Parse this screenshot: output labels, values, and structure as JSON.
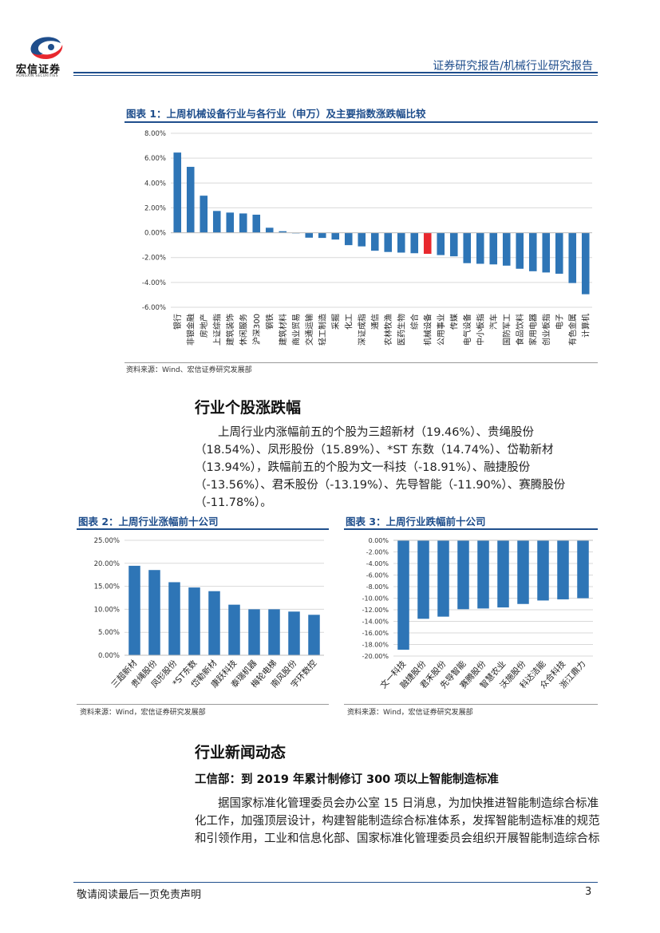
{
  "header": {
    "logo_name": "宏信证券",
    "logo_en": "HONGXIN SECURITIES",
    "title": "证券研究报告/机械行业研究报告"
  },
  "figure1": {
    "title": "图表 1：上周机械设备行业与各行业（申万）及主要指数涨跌幅比较",
    "source": "资料来源：Wind、宏信证券研究发展部"
  },
  "section1": {
    "heading": "行业个股涨跌幅",
    "paragraph": "上周行业内涨幅前五的个股为三超新材（19.46%）、贵绳股份（18.54%）、凤形股份（15.89%）、*ST 东数（14.74%）、岱勒新材（13.94%），跌幅前五的个股为文一科技（-18.91%）、融捷股份（-13.56%）、君禾股份（-13.19%）、先导智能（-11.90%）、赛腾股份（-11.78%）。"
  },
  "figure2": {
    "title": "图表 2：上周行业涨幅前十公司",
    "source": "资料来源：Wind，宏信证券研究发展部"
  },
  "figure3": {
    "title": "图表 3：上周行业跌幅前十公司",
    "source": "资料来源：Wind，宏信证券研究发展部"
  },
  "section2": {
    "heading": "行业新闻动态",
    "subheading": "工信部：到 2019 年累计制修订 300 项以上智能制造标准",
    "paragraph": "据国家标准化管理委员会办公室 15 日消息，为加快推进智能制造综合标准化工作，加强顶层设计，构建智能制造综合标准体系，发挥智能制造标准的规范和引领作用，工业和信息化部、国家标准化管理委员会组织开展智能制造综合标"
  },
  "footer": {
    "disclaimer": "敬请阅读最后一页免责声明",
    "page": "3"
  },
  "colors": {
    "accent": "#1f4e8c",
    "bar": "#2e75b6",
    "highlight": "#e8282e"
  },
  "chart_data": [
    {
      "type": "bar",
      "categories": [
        "银行",
        "非银金融",
        "房地产",
        "上证综指",
        "建筑装饰",
        "休闲服务",
        "沪深300",
        "钢铁",
        "建筑材料",
        "商业贸易",
        "交通运输",
        "轻工制造",
        "采掘",
        "化工",
        "深证成指",
        "通信",
        "农林牧渔",
        "医药生物",
        "综合",
        "机械设备",
        "公用事业",
        "传媒",
        "电气设备",
        "中小板指",
        "汽车",
        "国防军工",
        "食品饮料",
        "家用电器",
        "创业板指",
        "电子",
        "有色金属",
        "计算机"
      ],
      "values": [
        6.45,
        5.3,
        2.98,
        1.75,
        1.62,
        1.55,
        1.45,
        0.4,
        0.12,
        -0.02,
        -0.4,
        -0.42,
        -0.55,
        -1.0,
        -1.1,
        -1.45,
        -1.55,
        -1.6,
        -1.65,
        -1.7,
        -1.8,
        -1.9,
        -2.45,
        -2.5,
        -2.55,
        -2.65,
        -2.9,
        -3.1,
        -3.2,
        -3.3,
        -4.05,
        -4.95
      ],
      "highlight": "机械设备",
      "ylim": [
        -6,
        8
      ],
      "yticks": [
        "-6.00%",
        "-4.00%",
        "-2.00%",
        "0.00%",
        "2.00%",
        "4.00%",
        "6.00%",
        "8.00%"
      ],
      "grid": true
    },
    {
      "type": "bar",
      "categories": [
        "三超新材",
        "贵绳股份",
        "凤形股份",
        "*ST东数",
        "岱勒新材",
        "康跃科技",
        "泰瑞机器",
        "梅轮电梯",
        "南风股份",
        "宇环数控"
      ],
      "values": [
        19.46,
        18.54,
        15.89,
        14.74,
        13.94,
        11.0,
        10.0,
        10.0,
        9.5,
        8.8
      ],
      "ylim": [
        0,
        25
      ],
      "yticks": [
        "0.00%",
        "5.00%",
        "10.00%",
        "15.00%",
        "20.00%",
        "25.00%"
      ],
      "grid": true
    },
    {
      "type": "bar",
      "categories": [
        "文一科技",
        "融捷股份",
        "君禾股份",
        "先导智能",
        "赛腾股份",
        "智慧农业",
        "沃施股份",
        "科达洁能",
        "众合科技",
        "浙江鼎力"
      ],
      "values": [
        -18.91,
        -13.56,
        -13.19,
        -11.9,
        -11.78,
        -11.6,
        -11.0,
        -10.4,
        -10.2,
        -10.0
      ],
      "ylim": [
        -20,
        0
      ],
      "yticks": [
        "-20.00%",
        "-18.00%",
        "-16.00%",
        "-14.00%",
        "-12.00%",
        "-10.00%",
        "-8.00%",
        "-6.00%",
        "-4.00%",
        "-2.00%",
        "0.00%"
      ],
      "grid": true
    }
  ]
}
